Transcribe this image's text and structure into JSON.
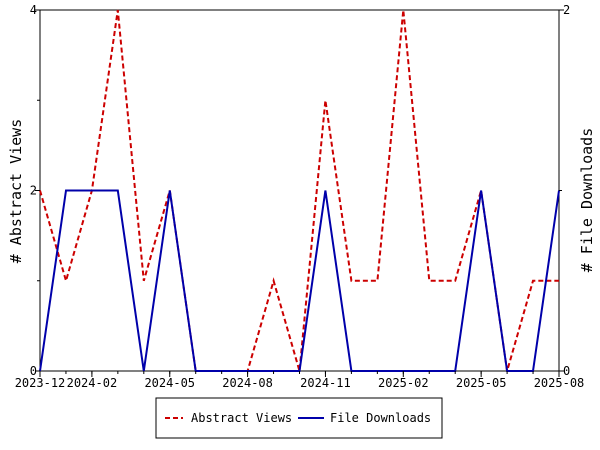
{
  "chart_data": {
    "type": "line",
    "x_ticks": [
      "2023-12",
      "2024-02",
      "2024-05",
      "2024-08",
      "2024-11",
      "2025-02",
      "2025-05",
      "2025-08"
    ],
    "x": [
      "2023-12",
      "2024-01",
      "2024-02",
      "2024-03",
      "2024-04",
      "2024-05",
      "2024-06",
      "2024-07",
      "2024-08",
      "2024-09",
      "2024-10",
      "2024-11",
      "2024-12",
      "2025-01",
      "2025-02",
      "2025-03",
      "2025-04",
      "2025-05",
      "2025-06",
      "2025-07",
      "2025-08"
    ],
    "ylabel_left": "# Abstract Views",
    "ylabel_right": "# File Downloads",
    "ylim_left": [
      0,
      4
    ],
    "ylim_right": [
      0,
      2
    ],
    "yticks_left": [
      "0",
      "2",
      "4"
    ],
    "yticks_right": [
      "0",
      "2"
    ],
    "series": [
      {
        "name": "Abstract Views",
        "axis": "left",
        "color": "#cc0000",
        "style": "dashed",
        "values": [
          2,
          1,
          2,
          4,
          1,
          2,
          0,
          0,
          0,
          1,
          0,
          3,
          1,
          1,
          4,
          1,
          1,
          2,
          0,
          1,
          1
        ]
      },
      {
        "name": "File Downloads",
        "axis": "right",
        "color": "#0000aa",
        "style": "solid",
        "values": [
          0,
          1,
          1,
          1,
          0,
          1,
          0,
          0,
          0,
          0,
          0,
          1,
          0,
          0,
          0,
          0,
          0,
          1,
          0,
          0,
          1
        ]
      }
    ],
    "grid": false,
    "legend_position": "bottom-center"
  }
}
